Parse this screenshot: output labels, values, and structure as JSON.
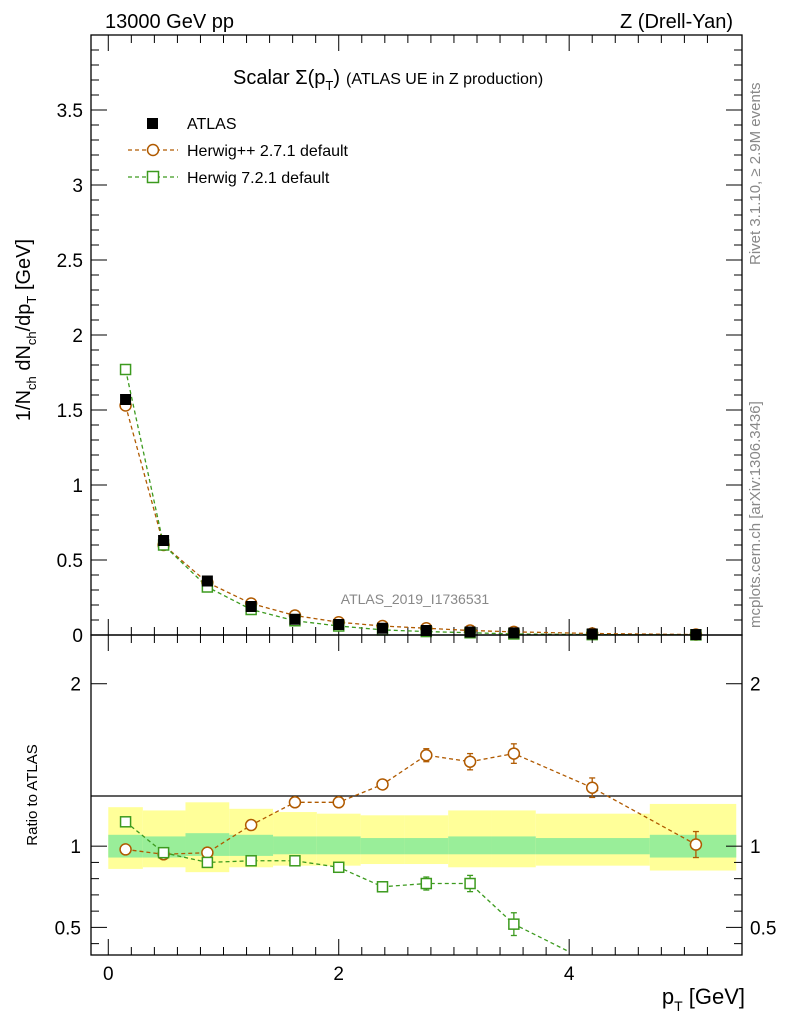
{
  "chart_data": [
    {
      "type": "scatter",
      "header_left": "13000 GeV pp",
      "header_right": "Z (Drell-Yan)",
      "title_main": "Scalar Σ(p",
      "title_sub": "T",
      "title_close": ")",
      "title_rest": "(ATLAS UE in Z production)",
      "ylabel": "1/N_ch dN_ch/dp_T [GeV]",
      "ylabel_parts": {
        "a": "1/N",
        "b": "ch",
        "c": " dN",
        "d": "ch",
        "e": "/dp",
        "f": "T",
        "g": " [GeV]"
      },
      "watermark": "ATLAS_2019_I1736531",
      "side_top": "Rivet 3.1.10, ≥ 2.9M events",
      "side_bottom": "mcplots.cern.ch [arXiv:1306.3436]",
      "xlim": [
        -0.15,
        5.5
      ],
      "ylim": [
        0,
        4.0
      ],
      "y_ticks": [
        0,
        0.5,
        1,
        1.5,
        2,
        2.5,
        3,
        3.5
      ],
      "y_tick_labels": [
        "0",
        "0.5",
        "1",
        "1.5",
        "2",
        "2.5",
        "3",
        "3.5"
      ],
      "x": [
        0.15,
        0.48,
        0.86,
        1.24,
        1.62,
        2.0,
        2.38,
        2.76,
        3.14,
        3.52,
        4.2,
        5.1
      ],
      "series": [
        {
          "name": "ATLAS",
          "marker": "square-filled",
          "color": "#000000",
          "values": [
            1.57,
            0.63,
            0.36,
            0.19,
            0.105,
            0.07,
            0.045,
            0.03,
            0.02,
            0.014,
            0.007,
            0.003
          ]
        },
        {
          "name": "Herwig++ 2.7.1 default",
          "marker": "circle-open",
          "color": "#b05a00",
          "values": [
            1.53,
            0.6,
            0.35,
            0.21,
            0.13,
            0.085,
            0.06,
            0.045,
            0.03,
            0.021,
            0.01,
            0.003
          ]
        },
        {
          "name": "Herwig 7.2.1 default",
          "marker": "square-open",
          "color": "#3c9a1e",
          "values": [
            1.77,
            0.6,
            0.32,
            0.17,
            0.095,
            0.06,
            0.034,
            0.023,
            0.015,
            0.007,
            0.0025,
            0.0008
          ]
        }
      ]
    },
    {
      "type": "scatter",
      "ylabel": "Ratio to ATLAS",
      "xlabel_main": "p",
      "xlabel_sub": "T",
      "xlabel_unit": " [GeV]",
      "xlim": [
        -0.15,
        5.5
      ],
      "ylim": [
        0.33,
        2.3
      ],
      "x_ticks": [
        0,
        2,
        4
      ],
      "x_tick_labels": [
        "0",
        "2",
        "4"
      ],
      "y_ticks": [
        0.5,
        1,
        2
      ],
      "y_tick_labels": [
        "0.5",
        "1",
        "2"
      ],
      "bands": [
        {
          "x0": 0.0,
          "x1": 0.3,
          "inner": [
            0.93,
            1.07
          ],
          "outer": [
            0.86,
            1.24
          ]
        },
        {
          "x0": 0.3,
          "x1": 0.67,
          "inner": [
            0.93,
            1.06
          ],
          "outer": [
            0.87,
            1.22
          ]
        },
        {
          "x0": 0.67,
          "x1": 1.05,
          "inner": [
            0.94,
            1.08
          ],
          "outer": [
            0.84,
            1.27
          ]
        },
        {
          "x0": 1.05,
          "x1": 1.43,
          "inner": [
            0.94,
            1.07
          ],
          "outer": [
            0.87,
            1.23
          ]
        },
        {
          "x0": 1.43,
          "x1": 1.81,
          "inner": [
            0.95,
            1.06
          ],
          "outer": [
            0.88,
            1.21
          ]
        },
        {
          "x0": 1.81,
          "x1": 2.19,
          "inner": [
            0.95,
            1.06
          ],
          "outer": [
            0.88,
            1.2
          ]
        },
        {
          "x0": 2.19,
          "x1": 2.57,
          "inner": [
            0.95,
            1.05
          ],
          "outer": [
            0.89,
            1.19
          ]
        },
        {
          "x0": 2.57,
          "x1": 2.95,
          "inner": [
            0.95,
            1.05
          ],
          "outer": [
            0.89,
            1.19
          ]
        },
        {
          "x0": 2.95,
          "x1": 3.33,
          "inner": [
            0.95,
            1.06
          ],
          "outer": [
            0.87,
            1.22
          ]
        },
        {
          "x0": 3.33,
          "x1": 3.71,
          "inner": [
            0.95,
            1.06
          ],
          "outer": [
            0.87,
            1.22
          ]
        },
        {
          "x0": 3.71,
          "x1": 4.7,
          "inner": [
            0.95,
            1.05
          ],
          "outer": [
            0.88,
            1.2
          ]
        },
        {
          "x0": 4.7,
          "x1": 5.45,
          "inner": [
            0.93,
            1.07
          ],
          "outer": [
            0.85,
            1.26
          ]
        }
      ],
      "series": [
        {
          "name": "Herwig++ 2.7.1 default",
          "marker": "circle-open",
          "color": "#b05a00",
          "x": [
            0.15,
            0.48,
            0.86,
            1.24,
            1.62,
            2.0,
            2.38,
            2.76,
            3.14,
            3.52,
            4.2,
            5.1
          ],
          "values": [
            0.98,
            0.95,
            0.96,
            1.13,
            1.27,
            1.27,
            1.38,
            1.56,
            1.52,
            1.57,
            1.36,
            1.01
          ],
          "errors": [
            0.01,
            0.01,
            0.01,
            0.01,
            0.015,
            0.02,
            0.025,
            0.04,
            0.05,
            0.06,
            0.06,
            0.08
          ]
        },
        {
          "name": "Herwig 7.2.1 default",
          "marker": "square-open",
          "color": "#3c9a1e",
          "x": [
            0.15,
            0.48,
            0.86,
            1.24,
            1.62,
            2.0,
            2.38,
            2.76,
            3.14,
            3.52,
            4.0
          ],
          "values": [
            1.15,
            0.96,
            0.9,
            0.91,
            0.91,
            0.87,
            0.75,
            0.77,
            0.77,
            0.52,
            0.35
          ],
          "errors": [
            0.01,
            0.01,
            0.01,
            0.01,
            0.015,
            0.02,
            0.03,
            0.04,
            0.05,
            0.07,
            0.05
          ],
          "markers_shown": 10
        }
      ]
    }
  ]
}
